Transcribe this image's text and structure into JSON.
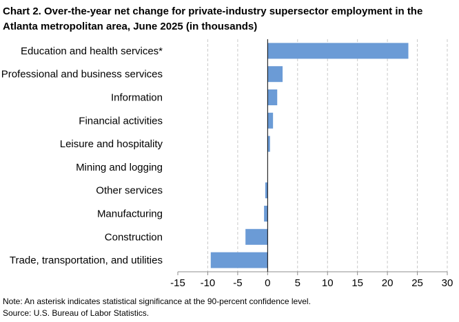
{
  "chart_data": {
    "type": "bar",
    "orientation": "horizontal",
    "title": "Chart 2. Over-the-year net change for private-industry supersector employment in the Atlanta metropolitan area, June 2025 (in thousands)",
    "categories": [
      "Education and health services*",
      "Professional and business services",
      "Information",
      "Financial activities",
      "Leisure and hospitality",
      "Mining and logging",
      "Other services",
      "Manufacturing",
      "Construction",
      "Trade, transportation, and utilities"
    ],
    "values": [
      23.5,
      2.5,
      1.6,
      0.9,
      0.4,
      0.0,
      -0.4,
      -0.6,
      -3.7,
      -9.5
    ],
    "xlim": [
      -15,
      30
    ],
    "xticks": [
      -15,
      -10,
      -5,
      0,
      5,
      10,
      15,
      20,
      25,
      30
    ],
    "xlabel": "",
    "ylabel": "",
    "grid": "vertical dashed",
    "bar_color": "#6b9bd6",
    "note": "Note: An asterisk indicates statistical significance at the 90-percent confidence level.",
    "source": "Source: U.S. Bureau of Labor Statistics."
  }
}
